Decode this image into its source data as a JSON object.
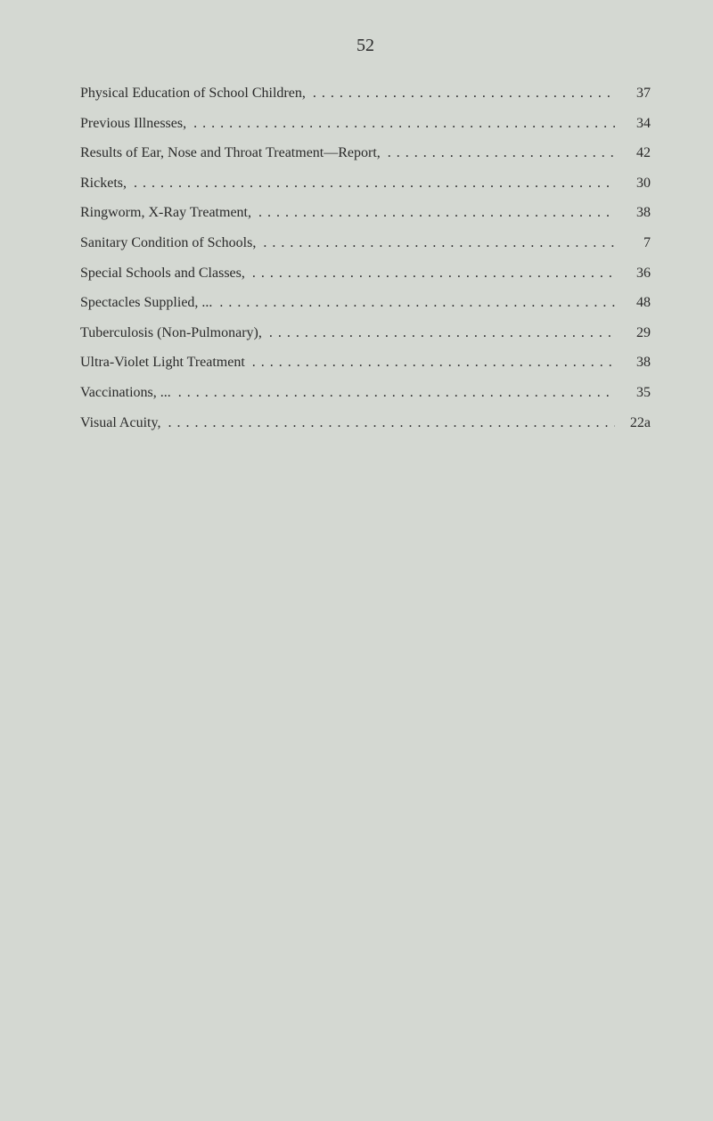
{
  "page_number": "52",
  "background_color": "#d4d8d2",
  "text_color": "#2a2a2a",
  "entries": [
    {
      "label": "Physical Education of School Children,",
      "page": "37"
    },
    {
      "label": "Previous Illnesses,",
      "page": "34"
    },
    {
      "label": "Results of Ear, Nose and Throat Treatment—Report,",
      "page": "42"
    },
    {
      "label": "Rickets,",
      "page": "30"
    },
    {
      "label": "Ringworm, X-Ray Treatment,",
      "page": "38"
    },
    {
      "label": "Sanitary Condition of Schools,",
      "page": "7"
    },
    {
      "label": "Special Schools and Classes,",
      "page": "36"
    },
    {
      "label": "Spectacles Supplied, ...",
      "page": "48"
    },
    {
      "label": "Tuberculosis (Non-Pulmonary),",
      "page": "29"
    },
    {
      "label": "Ultra-Violet Light Treatment",
      "page": "38"
    },
    {
      "label": "Vaccinations, ...",
      "page": "35"
    },
    {
      "label": "Visual Acuity,",
      "page": "22a"
    }
  ]
}
